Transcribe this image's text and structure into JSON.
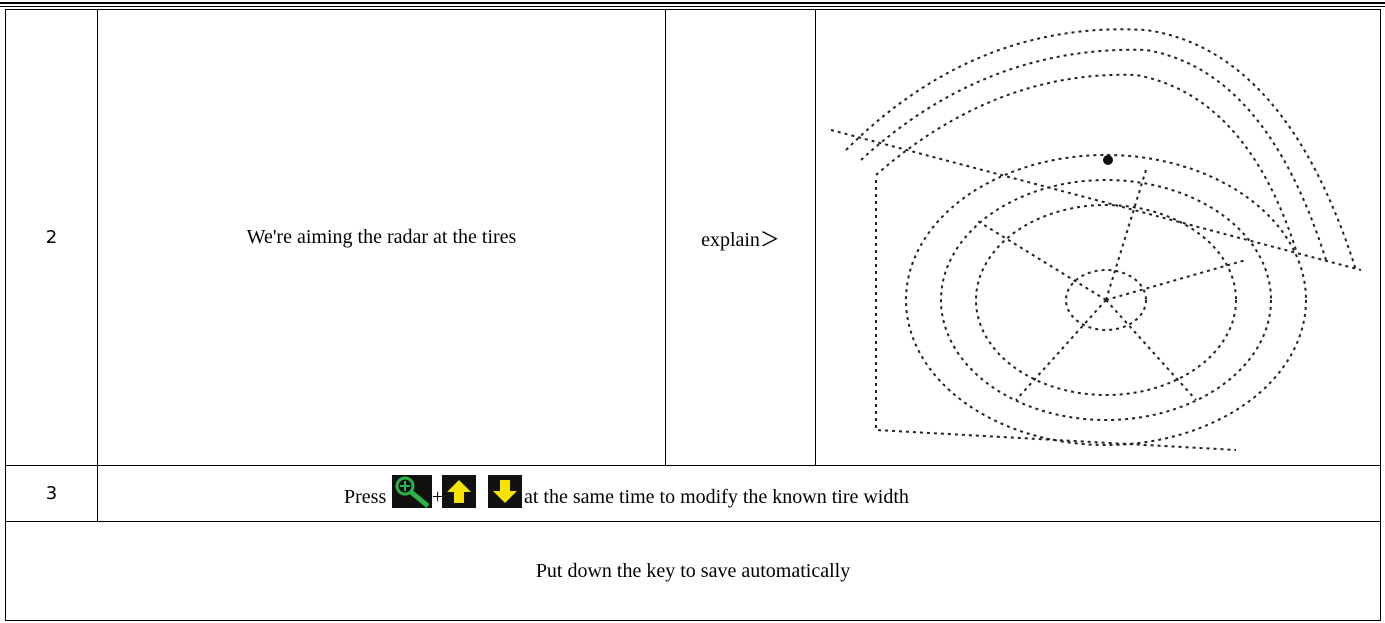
{
  "table": {
    "rows": [
      [
        "2",
        "We're aiming the radar at the tires",
        "explain＞"
      ],
      [
        "3",
        "Press",
        "+",
        "at the same time to modify the known tire width"
      ],
      [
        "Put down the key to save automatically"
      ]
    ]
  }
}
